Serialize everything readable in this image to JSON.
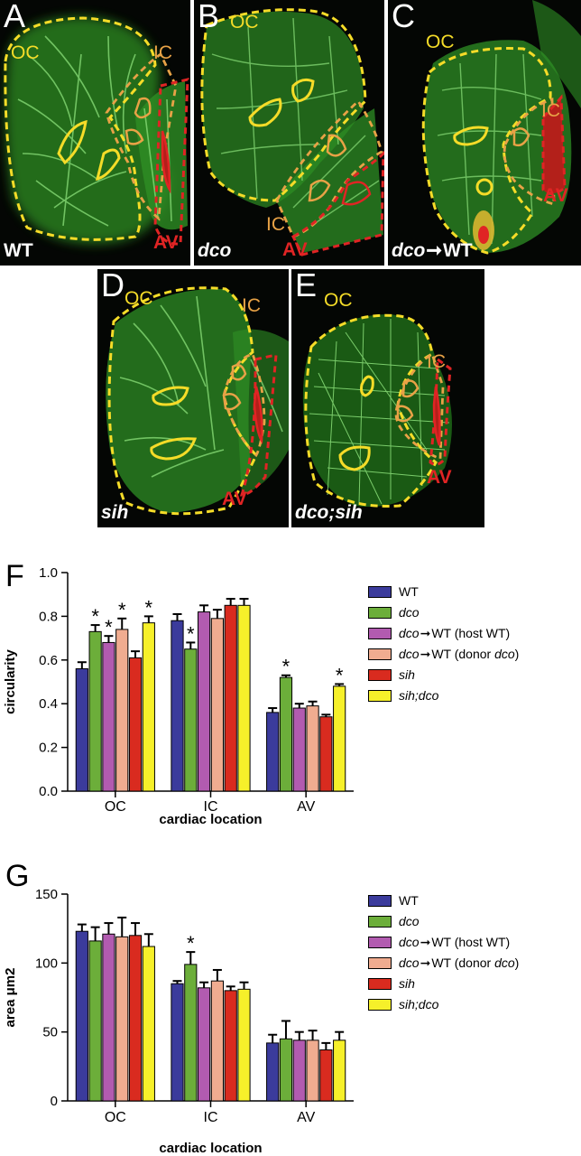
{
  "panels": [
    {
      "id": "A",
      "label": "A",
      "genotype_parts": [
        {
          "t": "WT",
          "it": false
        }
      ],
      "oc": "OC",
      "ic": "IC",
      "av": "AV"
    },
    {
      "id": "B",
      "label": "B",
      "genotype_parts": [
        {
          "t": "dco",
          "it": true
        }
      ],
      "oc": "OC",
      "ic": "IC",
      "av": "AV"
    },
    {
      "id": "C",
      "label": "C",
      "genotype_parts": [
        {
          "t": "dco",
          "it": true
        },
        {
          "t": "➞",
          "it": false
        },
        {
          "t": "WT",
          "it": false
        }
      ],
      "oc": "OC",
      "ic": "IC",
      "av": "AV"
    },
    {
      "id": "D",
      "label": "D",
      "genotype_parts": [
        {
          "t": "sih",
          "it": true
        }
      ],
      "oc": "OC",
      "ic": "IC",
      "av": "AV"
    },
    {
      "id": "E",
      "label": "E",
      "genotype_parts": [
        {
          "t": "dco;sih",
          "it": true
        }
      ],
      "oc": "OC",
      "ic": "IC",
      "av": "AV"
    }
  ],
  "colors": {
    "outer_curvature": "#f5dc28",
    "inner_curvature": "#e8a246",
    "av_canal": "#e02424",
    "tissue": "#2e8f24",
    "membrane": "#8be07a",
    "background": "#040604"
  },
  "legend": [
    {
      "parts": [
        {
          "t": "WT",
          "it": false
        }
      ],
      "color": "#3b3b9c"
    },
    {
      "parts": [
        {
          "t": "dco",
          "it": true
        }
      ],
      "color": "#6cae3a"
    },
    {
      "parts": [
        {
          "t": "dco",
          "it": true
        },
        {
          "t": "➞",
          "it": false
        },
        {
          "t": "WT (host WT)",
          "it": false
        }
      ],
      "color": "#b25bb0"
    },
    {
      "parts": [
        {
          "t": "dco",
          "it": true
        },
        {
          "t": "➞",
          "it": false
        },
        {
          "t": "WT (donor ",
          "it": false
        },
        {
          "t": "dco",
          "it": true
        },
        {
          "t": ")",
          "it": false
        }
      ],
      "color": "#f0ac90"
    },
    {
      "parts": [
        {
          "t": "sih",
          "it": true
        }
      ],
      "color": "#d92b1f"
    },
    {
      "parts": [
        {
          "t": "sih;dco",
          "it": true
        }
      ],
      "color": "#f6f02a"
    }
  ],
  "chart_data": [
    {
      "panel": "F",
      "type": "bar",
      "xlabel": "cardiac location",
      "ylabel": "circularity",
      "categories": [
        "OC",
        "IC",
        "AV"
      ],
      "ylim": [
        0,
        1.0
      ],
      "yticks": [
        "0.0",
        "0.2",
        "0.4",
        "0.6",
        "0.8",
        "1.0"
      ],
      "series": [
        {
          "name": "WT",
          "values": [
            0.56,
            0.78,
            0.36
          ],
          "errors": [
            0.03,
            0.03,
            0.02
          ],
          "sig": [
            false,
            false,
            false
          ]
        },
        {
          "name": "dco",
          "values": [
            0.73,
            0.65,
            0.52
          ],
          "errors": [
            0.03,
            0.03,
            0.01
          ],
          "sig": [
            true,
            true,
            true
          ]
        },
        {
          "name": "dco➞WT (host WT)",
          "values": [
            0.68,
            0.82,
            0.38
          ],
          "errors": [
            0.03,
            0.03,
            0.02
          ],
          "sig": [
            true,
            false,
            false
          ]
        },
        {
          "name": "dco➞WT (donor dco)",
          "values": [
            0.74,
            0.79,
            0.39
          ],
          "errors": [
            0.05,
            0.04,
            0.02
          ],
          "sig": [
            true,
            false,
            false
          ]
        },
        {
          "name": "sih",
          "values": [
            0.61,
            0.85,
            0.34
          ],
          "errors": [
            0.03,
            0.03,
            0.01
          ],
          "sig": [
            false,
            false,
            false
          ]
        },
        {
          "name": "sih;dco",
          "values": [
            0.77,
            0.85,
            0.48
          ],
          "errors": [
            0.03,
            0.03,
            0.01
          ],
          "sig": [
            true,
            false,
            true
          ]
        }
      ],
      "significance_marker": "*"
    },
    {
      "panel": "G",
      "type": "bar",
      "xlabel": "cardiac location",
      "ylabel": "area μm2",
      "categories": [
        "OC",
        "IC",
        "AV"
      ],
      "ylim": [
        0,
        150
      ],
      "yticks": [
        "0",
        "50",
        "100",
        "150"
      ],
      "series": [
        {
          "name": "WT",
          "values": [
            123,
            85,
            42
          ],
          "errors": [
            5,
            2,
            6
          ],
          "sig": [
            false,
            false,
            false
          ]
        },
        {
          "name": "dco",
          "values": [
            116,
            99,
            45
          ],
          "errors": [
            10,
            9,
            13
          ],
          "sig": [
            false,
            true,
            false
          ]
        },
        {
          "name": "dco➞WT (host WT)",
          "values": [
            121,
            82,
            44
          ],
          "errors": [
            8,
            4,
            6
          ],
          "sig": [
            false,
            false,
            false
          ]
        },
        {
          "name": "dco➞WT (donor dco)",
          "values": [
            119,
            87,
            44
          ],
          "errors": [
            14,
            8,
            7
          ],
          "sig": [
            false,
            false,
            false
          ]
        },
        {
          "name": "sih",
          "values": [
            120,
            80,
            37
          ],
          "errors": [
            9,
            3,
            5
          ],
          "sig": [
            false,
            false,
            false
          ]
        },
        {
          "name": "sih;dco",
          "values": [
            112,
            81,
            44
          ],
          "errors": [
            9,
            5,
            6
          ],
          "sig": [
            false,
            false,
            false
          ]
        }
      ],
      "significance_marker": "*"
    }
  ]
}
